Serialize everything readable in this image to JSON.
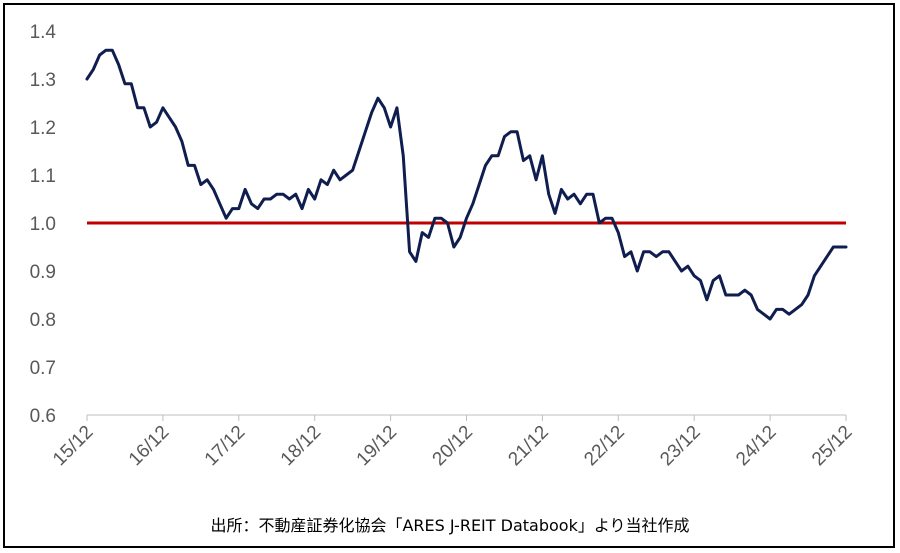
{
  "chart_data": {
    "type": "line",
    "title": "",
    "xlabel": "",
    "ylabel": "",
    "x_ticks": [
      "15/12",
      "16/12",
      "17/12",
      "18/12",
      "19/12",
      "20/12",
      "21/12",
      "22/12",
      "23/12",
      "24/12",
      "25/12"
    ],
    "y_ticks": [
      "0.6",
      "0.7",
      "0.8",
      "0.9",
      "1.0",
      "1.1",
      "1.2",
      "1.3",
      "1.4"
    ],
    "ylim": [
      0.6,
      1.4
    ],
    "xlim": [
      "2015-12",
      "2025-12"
    ],
    "grid": false,
    "legend": "none",
    "series": [
      {
        "color": "#0f1e4f",
        "points": [
          [
            "2015-12",
            1.3
          ],
          [
            "2016-01",
            1.32
          ],
          [
            "2016-02",
            1.35
          ],
          [
            "2016-03",
            1.36
          ],
          [
            "2016-04",
            1.36
          ],
          [
            "2016-05",
            1.33
          ],
          [
            "2016-06",
            1.29
          ],
          [
            "2016-07",
            1.29
          ],
          [
            "2016-08",
            1.24
          ],
          [
            "2016-09",
            1.24
          ],
          [
            "2016-10",
            1.2
          ],
          [
            "2016-11",
            1.21
          ],
          [
            "2016-12",
            1.24
          ],
          [
            "2017-01",
            1.22
          ],
          [
            "2017-02",
            1.2
          ],
          [
            "2017-03",
            1.17
          ],
          [
            "2017-04",
            1.12
          ],
          [
            "2017-05",
            1.12
          ],
          [
            "2017-06",
            1.08
          ],
          [
            "2017-07",
            1.09
          ],
          [
            "2017-08",
            1.07
          ],
          [
            "2017-09",
            1.04
          ],
          [
            "2017-10",
            1.01
          ],
          [
            "2017-11",
            1.03
          ],
          [
            "2017-12",
            1.03
          ],
          [
            "2018-01",
            1.07
          ],
          [
            "2018-02",
            1.04
          ],
          [
            "2018-03",
            1.03
          ],
          [
            "2018-04",
            1.05
          ],
          [
            "2018-05",
            1.05
          ],
          [
            "2018-06",
            1.06
          ],
          [
            "2018-07",
            1.06
          ],
          [
            "2018-08",
            1.05
          ],
          [
            "2018-09",
            1.06
          ],
          [
            "2018-10",
            1.03
          ],
          [
            "2018-11",
            1.07
          ],
          [
            "2018-12",
            1.05
          ],
          [
            "2019-01",
            1.09
          ],
          [
            "2019-02",
            1.08
          ],
          [
            "2019-03",
            1.11
          ],
          [
            "2019-04",
            1.09
          ],
          [
            "2019-05",
            1.1
          ],
          [
            "2019-06",
            1.11
          ],
          [
            "2019-07",
            1.15
          ],
          [
            "2019-08",
            1.19
          ],
          [
            "2019-09",
            1.23
          ],
          [
            "2019-10",
            1.26
          ],
          [
            "2019-11",
            1.24
          ],
          [
            "2019-12",
            1.2
          ],
          [
            "2020-01",
            1.24
          ],
          [
            "2020-02",
            1.14
          ],
          [
            "2020-03",
            0.94
          ],
          [
            "2020-04",
            0.92
          ],
          [
            "2020-05",
            0.98
          ],
          [
            "2020-06",
            0.97
          ],
          [
            "2020-07",
            1.01
          ],
          [
            "2020-08",
            1.01
          ],
          [
            "2020-09",
            1.0
          ],
          [
            "2020-10",
            0.95
          ],
          [
            "2020-11",
            0.97
          ],
          [
            "2020-12",
            1.01
          ],
          [
            "2021-01",
            1.04
          ],
          [
            "2021-02",
            1.08
          ],
          [
            "2021-03",
            1.12
          ],
          [
            "2021-04",
            1.14
          ],
          [
            "2021-05",
            1.14
          ],
          [
            "2021-06",
            1.18
          ],
          [
            "2021-07",
            1.19
          ],
          [
            "2021-08",
            1.19
          ],
          [
            "2021-09",
            1.13
          ],
          [
            "2021-10",
            1.14
          ],
          [
            "2021-11",
            1.09
          ],
          [
            "2021-12",
            1.14
          ],
          [
            "2022-01",
            1.06
          ],
          [
            "2022-02",
            1.02
          ],
          [
            "2022-03",
            1.07
          ],
          [
            "2022-04",
            1.05
          ],
          [
            "2022-05",
            1.06
          ],
          [
            "2022-06",
            1.04
          ],
          [
            "2022-07",
            1.06
          ],
          [
            "2022-08",
            1.06
          ],
          [
            "2022-09",
            1.0
          ],
          [
            "2022-10",
            1.01
          ],
          [
            "2022-11",
            1.01
          ],
          [
            "2022-12",
            0.98
          ],
          [
            "2023-01",
            0.93
          ],
          [
            "2023-02",
            0.94
          ],
          [
            "2023-03",
            0.9
          ],
          [
            "2023-04",
            0.94
          ],
          [
            "2023-05",
            0.94
          ],
          [
            "2023-06",
            0.93
          ],
          [
            "2023-07",
            0.94
          ],
          [
            "2023-08",
            0.94
          ],
          [
            "2023-09",
            0.92
          ],
          [
            "2023-10",
            0.9
          ],
          [
            "2023-11",
            0.91
          ],
          [
            "2023-12",
            0.89
          ],
          [
            "2024-01",
            0.88
          ],
          [
            "2024-02",
            0.84
          ],
          [
            "2024-03",
            0.88
          ],
          [
            "2024-04",
            0.89
          ],
          [
            "2024-05",
            0.85
          ],
          [
            "2024-06",
            0.85
          ],
          [
            "2024-07",
            0.85
          ],
          [
            "2024-08",
            0.86
          ],
          [
            "2024-09",
            0.85
          ],
          [
            "2024-10",
            0.82
          ],
          [
            "2024-11",
            0.81
          ],
          [
            "2024-12",
            0.8
          ],
          [
            "2025-01",
            0.82
          ],
          [
            "2025-02",
            0.82
          ],
          [
            "2025-03",
            0.81
          ],
          [
            "2025-04",
            0.82
          ],
          [
            "2025-05",
            0.83
          ],
          [
            "2025-06",
            0.85
          ],
          [
            "2025-07",
            0.89
          ],
          [
            "2025-08",
            0.91
          ],
          [
            "2025-09",
            0.93
          ],
          [
            "2025-10",
            0.95
          ],
          [
            "2025-11",
            0.95
          ],
          [
            "2025-12",
            0.95
          ]
        ]
      }
    ],
    "reference_lines": [
      {
        "y": 1.0,
        "color": "#c00000"
      }
    ],
    "source_note": "出所：不動産証券化協会「ARES J-REIT Databook」より当社作成"
  }
}
